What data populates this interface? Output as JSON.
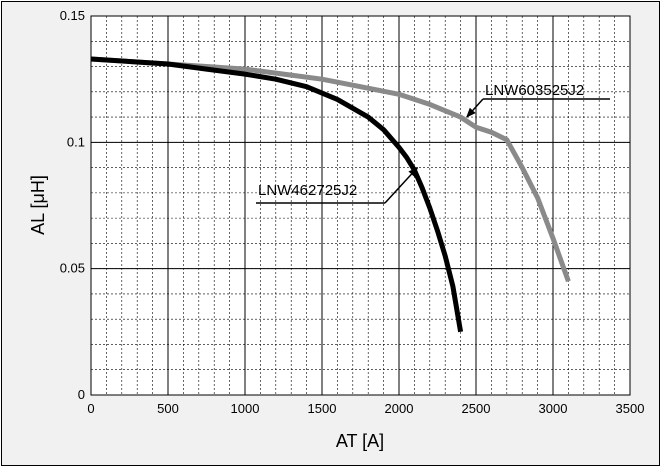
{
  "chart_data": {
    "type": "line",
    "title": "",
    "xlabel": "AT [A]",
    "ylabel": "AL [μH]",
    "xlim": [
      0,
      3500
    ],
    "ylim": [
      0,
      0.15
    ],
    "x_major_ticks": [
      0,
      500,
      1000,
      1500,
      2000,
      2500,
      3000,
      3500
    ],
    "x_tick_labels": [
      "0",
      "500",
      "1000",
      "1500",
      "2000",
      "2500",
      "3000",
      "3500"
    ],
    "y_major_ticks": [
      0,
      0.05,
      0.1,
      0.15
    ],
    "y_tick_labels": [
      "0",
      "0.05",
      "0.1",
      "0.15"
    ],
    "x_minor_step": 100,
    "y_minor_step": 0.01,
    "grid": true,
    "series": [
      {
        "name": "LNW603525J2",
        "color": "#8a8a8a",
        "x": [
          0,
          250,
          500,
          750,
          1000,
          1250,
          1500,
          1750,
          2000,
          2200,
          2400,
          2500,
          2600,
          2700,
          2800,
          2900,
          3000,
          3100
        ],
        "y": [
          0.133,
          0.132,
          0.131,
          0.13,
          0.129,
          0.127,
          0.125,
          0.122,
          0.119,
          0.115,
          0.11,
          0.106,
          0.104,
          0.101,
          0.09,
          0.078,
          0.062,
          0.045
        ]
      },
      {
        "name": "LNW462725J2",
        "color": "#000000",
        "x": [
          0,
          250,
          500,
          750,
          1000,
          1200,
          1400,
          1600,
          1800,
          1900,
          2000,
          2050,
          2100,
          2150,
          2200,
          2250,
          2300,
          2350,
          2400
        ],
        "y": [
          0.133,
          0.132,
          0.131,
          0.129,
          0.127,
          0.125,
          0.122,
          0.117,
          0.11,
          0.105,
          0.098,
          0.094,
          0.089,
          0.082,
          0.074,
          0.065,
          0.055,
          0.043,
          0.025
        ]
      }
    ],
    "annotations": [
      {
        "text": "LNW603525J2",
        "series": 0,
        "points_to": [
          2440,
          0.11
        ]
      },
      {
        "text": "LNW462725J2",
        "series": 1,
        "points_to": [
          2120,
          0.09
        ]
      }
    ]
  }
}
